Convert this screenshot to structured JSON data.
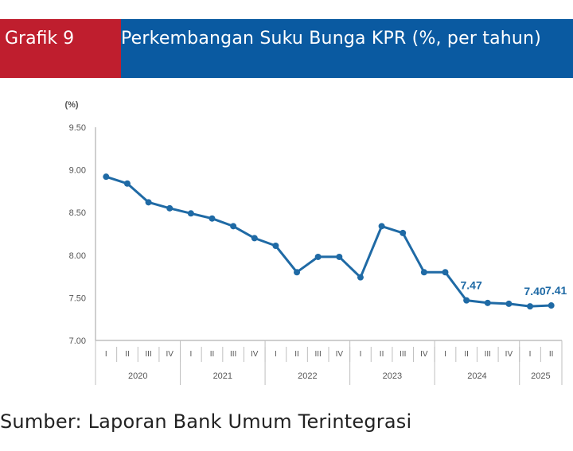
{
  "header": {
    "label": "Grafik 9",
    "title": "Perkembangan Suku Bunga KPR (%, per tahun)"
  },
  "source": "Sumber: Laporan Bank Umum Terintegrasi",
  "colors": {
    "label_bg": "#bf1e2e",
    "title_bg": "#0a5aa1",
    "line": "#1f6aa5",
    "axis": "#bfbfbf",
    "data_label": "#1f6aa5"
  },
  "chart_data": {
    "type": "line",
    "ylabel": "(%)",
    "ylim": [
      7.0,
      9.5
    ],
    "yticks": [
      "7.00",
      "7.50",
      "8.00",
      "8.50",
      "9.00",
      "9.50"
    ],
    "grid": false,
    "categories": [
      "I",
      "II",
      "III",
      "IV",
      "I",
      "II",
      "III",
      "IV",
      "I",
      "II",
      "III",
      "IV",
      "I",
      "II",
      "III",
      "IV",
      "I",
      "II",
      "III",
      "IV",
      "I",
      "II"
    ],
    "years": [
      {
        "label": "2020",
        "quarters": 4
      },
      {
        "label": "2021",
        "quarters": 4
      },
      {
        "label": "2022",
        "quarters": 4
      },
      {
        "label": "2023",
        "quarters": 4
      },
      {
        "label": "2024",
        "quarters": 4
      },
      {
        "label": "2025",
        "quarters": 2
      }
    ],
    "values": [
      8.92,
      8.84,
      8.62,
      8.55,
      8.49,
      8.43,
      8.34,
      8.2,
      8.11,
      7.8,
      7.98,
      7.98,
      7.74,
      8.34,
      8.26,
      7.8,
      7.8,
      7.47,
      7.44,
      7.43,
      7.4,
      7.41
    ],
    "data_labels": [
      {
        "index": 17,
        "text": "7.47"
      },
      {
        "index": 20,
        "text": "7.40"
      },
      {
        "index": 21,
        "text": "7.41"
      }
    ]
  }
}
